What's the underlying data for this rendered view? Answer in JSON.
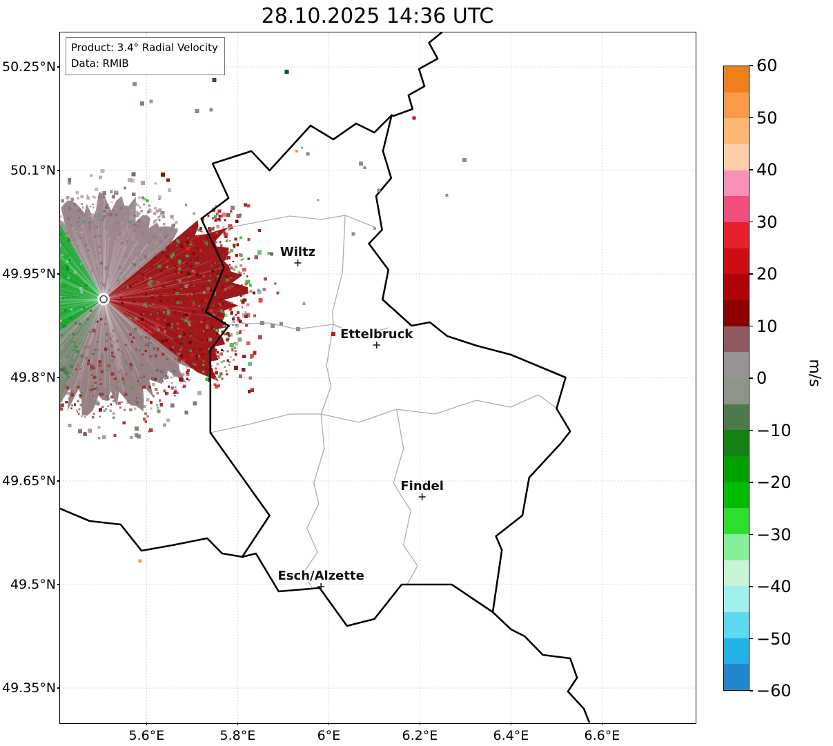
{
  "title": "28.10.2025 14:36 UTC",
  "product_box": {
    "line1": "Product: 3.4° Radial Velocity",
    "line2": "Data: RMIB"
  },
  "chart_data": {
    "type": "heatmap",
    "subtype": "doppler-radial-velocity-radar-map",
    "title": "28.10.2025 14:36 UTC",
    "axes": {
      "lon_min": 5.41,
      "lon_max": 6.804,
      "lat_min": 49.3,
      "lat_max": 50.3,
      "grid_on": true,
      "grid_color": "#c9c9c9",
      "lon_ticks": [
        {
          "v": 5.6,
          "label": "5.6°E"
        },
        {
          "v": 5.8,
          "label": "5.8°E"
        },
        {
          "v": 6.0,
          "label": "6°E"
        },
        {
          "v": 6.2,
          "label": "6.2°E"
        },
        {
          "v": 6.4,
          "label": "6.4°E"
        },
        {
          "v": 6.6,
          "label": "6.6°E"
        }
      ],
      "lat_ticks": [
        {
          "v": 50.25,
          "label": "50.25°N"
        },
        {
          "v": 50.1,
          "label": "50.1°N"
        },
        {
          "v": 49.95,
          "label": "49.95°N"
        },
        {
          "v": 49.8,
          "label": "49.8°N"
        },
        {
          "v": 49.65,
          "label": "49.65°N"
        },
        {
          "v": 49.5,
          "label": "49.5°N"
        },
        {
          "v": 49.35,
          "label": "49.35°N"
        }
      ]
    },
    "colorbar": {
      "label": "m/s",
      "vmin": -60,
      "vmax": 60,
      "tick_values": [
        60,
        50,
        40,
        30,
        20,
        10,
        0,
        -10,
        -20,
        -30,
        -40,
        -50,
        -60
      ],
      "tick_labels": [
        "60",
        "50",
        "40",
        "30",
        "20",
        "10",
        "0",
        "−10",
        "−20",
        "−30",
        "−40",
        "−50",
        "−60"
      ],
      "colors_top_to_bottom": [
        "#ef7f1a",
        "#f89a4a",
        "#fbb873",
        "#fccfa8",
        "#f890b8",
        "#f04e7e",
        "#e8202e",
        "#cd0d12",
        "#ad0308",
        "#8c0000",
        "#8f5a60",
        "#999295",
        "#8d9489",
        "#4c7a4c",
        "#148114",
        "#01a001",
        "#00bd00",
        "#2ede2e",
        "#86ef9a",
        "#c8f5d5",
        "#a0f0ee",
        "#5cd9ee",
        "#22b2e8",
        "#2287d1"
      ]
    },
    "radar": {
      "center_lon": 5.5056,
      "center_lat": 49.9135,
      "sectors": [
        {
          "name": "east-positive",
          "a1": -38,
          "a2": 40,
          "r": 192,
          "fill": "#9a0d10",
          "palette": [
            "#6f0004",
            "#c01218",
            "#e22b2b",
            "#8e0a0e",
            "#a61216",
            "#7a1d1d",
            "#2db83d",
            "#8a8f88"
          ],
          "speckles": 520,
          "halo": 95
        },
        {
          "name": "north-near-zero",
          "a1": 40,
          "a2": 120,
          "r": 142,
          "fill": "#99828a",
          "palette": [
            "#8c7379",
            "#a89298",
            "#7e676d",
            "#b09a9f",
            "#8f767c",
            "#9d858b",
            "#67975f"
          ],
          "speckles": 240,
          "halo": 45
        },
        {
          "name": "west-negative",
          "a1": 120,
          "a2": 216,
          "r": 215,
          "fill": "#12a229",
          "palette": [
            "#0b7e1d",
            "#21c93a",
            "#55e06a",
            "#0a6b16",
            "#16a52c",
            "#7ff08f",
            "#0e8f20",
            "#b7bfb4"
          ],
          "speckles": 470,
          "halo": 60
        },
        {
          "name": "southwest-near-zero",
          "a1": 216,
          "a2": 247,
          "r": 185,
          "fill": "#72836c",
          "palette": [
            "#5c7056",
            "#87977f",
            "#4e6047",
            "#6d7f66",
            "#93a28b",
            "#2f9f3f"
          ],
          "speckles": 150,
          "halo": 35
        },
        {
          "name": "south-mixed",
          "a1": 247,
          "a2": 322,
          "r": 158,
          "fill": "#927a7e",
          "palette": [
            "#85686d",
            "#9d8489",
            "#7b5f64",
            "#8e1414",
            "#a52222",
            "#6f8a5e"
          ],
          "speckles": 260,
          "halo": 55
        }
      ]
    },
    "cities": [
      {
        "name": "Wiltz",
        "lon": 5.932,
        "lat": 49.966
      },
      {
        "name": "Ettelbruck",
        "lon": 6.105,
        "lat": 49.847
      },
      {
        "name": "Findel",
        "lon": 6.205,
        "lat": 49.627
      },
      {
        "name": "Esch/Alzette",
        "lon": 5.983,
        "lat": 49.497
      }
    ],
    "borders": {
      "country": [
        [
          [
            6.248,
            50.3
          ],
          [
            6.22,
            50.285
          ],
          [
            6.239,
            50.262
          ],
          [
            6.198,
            50.247
          ],
          [
            6.21,
            50.222
          ],
          [
            6.175,
            50.209
          ],
          [
            6.184,
            50.189
          ],
          [
            6.142,
            50.179
          ],
          [
            6.138,
            50.18
          ]
        ],
        [
          [
            6.138,
            50.18
          ],
          [
            6.119,
            50.128
          ],
          [
            6.137,
            50.089
          ],
          [
            6.104,
            50.063
          ],
          [
            6.117,
            50.014
          ],
          [
            6.088,
            49.994
          ],
          [
            6.131,
            49.956
          ],
          [
            6.118,
            49.913
          ],
          [
            6.182,
            49.875
          ],
          [
            6.222,
            49.88
          ],
          [
            6.26,
            49.86
          ],
          [
            6.325,
            49.846
          ],
          [
            6.4,
            49.833
          ],
          [
            6.48,
            49.811
          ],
          [
            6.52,
            49.8
          ],
          [
            6.5,
            49.755
          ],
          [
            6.53,
            49.722
          ],
          [
            6.51,
            49.705
          ],
          [
            6.44,
            49.655
          ],
          [
            6.425,
            49.6
          ],
          [
            6.367,
            49.57
          ],
          [
            6.38,
            49.55
          ],
          [
            6.36,
            49.46
          ],
          [
            6.27,
            49.5
          ],
          [
            6.16,
            49.5
          ],
          [
            6.1,
            49.45
          ],
          [
            6.04,
            49.44
          ],
          [
            5.98,
            49.495
          ],
          [
            5.89,
            49.49
          ],
          [
            5.84,
            49.545
          ],
          [
            5.81,
            49.54
          ],
          [
            5.87,
            49.6
          ],
          [
            5.74,
            49.72
          ],
          [
            5.74,
            49.84
          ],
          [
            5.78,
            49.875
          ],
          [
            5.73,
            49.895
          ],
          [
            5.77,
            49.96
          ],
          [
            5.72,
            50.03
          ],
          [
            5.78,
            50.06
          ],
          [
            5.745,
            50.11
          ],
          [
            5.83,
            50.128
          ],
          [
            5.87,
            50.1
          ],
          [
            5.96,
            50.165
          ],
          [
            6.01,
            50.145
          ],
          [
            6.06,
            50.168
          ],
          [
            6.1,
            50.155
          ],
          [
            6.138,
            50.18
          ]
        ],
        [
          [
            5.41,
            49.61
          ],
          [
            5.475,
            49.592
          ],
          [
            5.543,
            49.587
          ],
          [
            5.589,
            49.549
          ],
          [
            5.657,
            49.557
          ],
          [
            5.733,
            49.567
          ],
          [
            5.766,
            49.545
          ],
          [
            5.811,
            49.54
          ]
        ],
        [
          [
            6.36,
            49.46
          ],
          [
            6.4,
            49.435
          ],
          [
            6.43,
            49.425
          ],
          [
            6.47,
            49.398
          ],
          [
            6.53,
            49.393
          ],
          [
            6.545,
            49.365
          ],
          [
            6.525,
            49.345
          ],
          [
            6.56,
            49.32
          ],
          [
            6.575,
            49.295
          ]
        ]
      ],
      "internal": [
        [
          [
            6.104,
            50.017
          ],
          [
            6.036,
            50.035
          ],
          [
            5.983,
            50.029
          ],
          [
            5.915,
            50.034
          ],
          [
            5.778,
            50.017
          ]
        ],
        [
          [
            6.036,
            50.035
          ],
          [
            6.03,
            49.952
          ],
          [
            6.008,
            49.895
          ],
          [
            6.01,
            49.877
          ]
        ],
        [
          [
            5.778,
            49.877
          ],
          [
            5.869,
            49.879
          ],
          [
            5.93,
            49.87
          ],
          [
            6.01,
            49.877
          ],
          [
            6.066,
            49.86
          ],
          [
            6.13,
            49.872
          ]
        ],
        [
          [
            6.01,
            49.877
          ],
          [
            5.995,
            49.817
          ],
          [
            6.005,
            49.787
          ],
          [
            5.983,
            49.747
          ],
          [
            5.99,
            49.697
          ],
          [
            5.967,
            49.647
          ],
          [
            5.978,
            49.617
          ]
        ],
        [
          [
            5.74,
            49.72
          ],
          [
            5.824,
            49.732
          ],
          [
            5.915,
            49.747
          ],
          [
            5.983,
            49.747
          ],
          [
            6.066,
            49.735
          ],
          [
            6.149,
            49.754
          ],
          [
            6.233,
            49.747
          ],
          [
            6.324,
            49.767
          ],
          [
            6.399,
            49.757
          ],
          [
            6.46,
            49.775
          ],
          [
            6.501,
            49.755
          ]
        ],
        [
          [
            6.149,
            49.754
          ],
          [
            6.164,
            49.697
          ],
          [
            6.142,
            49.647
          ],
          [
            6.18,
            49.607
          ],
          [
            6.164,
            49.557
          ],
          [
            6.195,
            49.527
          ],
          [
            6.172,
            49.5
          ]
        ],
        [
          [
            5.978,
            49.617
          ],
          [
            5.952,
            49.582
          ],
          [
            5.975,
            49.547
          ],
          [
            5.945,
            49.517
          ],
          [
            5.963,
            49.495
          ]
        ]
      ]
    },
    "clutter": [
      {
        "lon": 5.574,
        "lat": 50.225,
        "c": "#8f8f8f",
        "s": 6
      },
      {
        "lon": 5.59,
        "lat": 50.197,
        "c": "#7d8565",
        "s": 6
      },
      {
        "lon": 5.61,
        "lat": 50.2,
        "c": "#979b93",
        "s": 5
      },
      {
        "lon": 5.711,
        "lat": 50.186,
        "c": "#7f9183",
        "s": 6
      },
      {
        "lon": 5.742,
        "lat": 50.188,
        "c": "#8d8d8d",
        "s": 5
      },
      {
        "lon": 5.749,
        "lat": 50.231,
        "c": "#1f5c2a",
        "s": 6
      },
      {
        "lon": 5.737,
        "lat": 50.247,
        "c": "#e8566e",
        "s": 4
      },
      {
        "lon": 5.908,
        "lat": 50.243,
        "c": "#14532d",
        "s": 6
      },
      {
        "lon": 5.93,
        "lat": 50.128,
        "c": "#f0963c",
        "s": 4
      },
      {
        "lon": 5.941,
        "lat": 50.133,
        "c": "#3fd08c",
        "s": 3
      },
      {
        "lon": 5.954,
        "lat": 50.124,
        "c": "#8a8a8a",
        "s": 5
      },
      {
        "lon": 6.071,
        "lat": 50.11,
        "c": "#909090",
        "s": 6
      },
      {
        "lon": 6.079,
        "lat": 50.104,
        "c": "#8b8b8b",
        "s": 4
      },
      {
        "lon": 6.187,
        "lat": 50.176,
        "c": "#cc1122",
        "s": 5
      },
      {
        "lon": 6.298,
        "lat": 50.115,
        "c": "#9b8389",
        "s": 6
      },
      {
        "lon": 6.11,
        "lat": 50.071,
        "c": "#8c8c8c",
        "s": 5
      },
      {
        "lon": 5.789,
        "lat": 50.046,
        "c": "#967d82",
        "s": 6
      },
      {
        "lon": 5.804,
        "lat": 50.034,
        "c": "#8f767b",
        "s": 5
      },
      {
        "lon": 5.636,
        "lat": 50.094,
        "c": "#7f1010",
        "s": 6
      },
      {
        "lon": 5.647,
        "lat": 50.086,
        "c": "#8b1a1a",
        "s": 5
      },
      {
        "lon": 5.602,
        "lat": 50.056,
        "c": "#22bb33",
        "s": 4
      },
      {
        "lon": 5.575,
        "lat": 50.051,
        "c": "#9a9a9a",
        "s": 5
      },
      {
        "lon": 5.848,
        "lat": 50.013,
        "c": "#c01020",
        "s": 4
      },
      {
        "lon": 5.868,
        "lat": 49.98,
        "c": "#2ecc71",
        "s": 4
      },
      {
        "lon": 6.054,
        "lat": 50.008,
        "c": "#8f8f8f",
        "s": 5
      },
      {
        "lon": 6.101,
        "lat": 50.016,
        "c": "#999999",
        "s": 4
      },
      {
        "lon": 5.854,
        "lat": 49.879,
        "c": "#8c8c8c",
        "s": 6
      },
      {
        "lon": 5.877,
        "lat": 49.875,
        "c": "#919191",
        "s": 6
      },
      {
        "lon": 5.896,
        "lat": 49.878,
        "c": "#888888",
        "s": 5
      },
      {
        "lon": 5.933,
        "lat": 49.87,
        "c": "#909090",
        "s": 6
      },
      {
        "lon": 6.01,
        "lat": 49.863,
        "c": "#d01020",
        "s": 6
      },
      {
        "lon": 5.946,
        "lat": 49.907,
        "c": "#9a9a9a",
        "s": 4
      },
      {
        "lon": 5.586,
        "lat": 49.534,
        "c": "#f5a623",
        "s": 5
      },
      {
        "lon": 6.259,
        "lat": 50.064,
        "c": "#8f8f8f",
        "s": 4
      },
      {
        "lon": 5.977,
        "lat": 50.057,
        "c": "#55bb55",
        "s": 3
      }
    ]
  }
}
